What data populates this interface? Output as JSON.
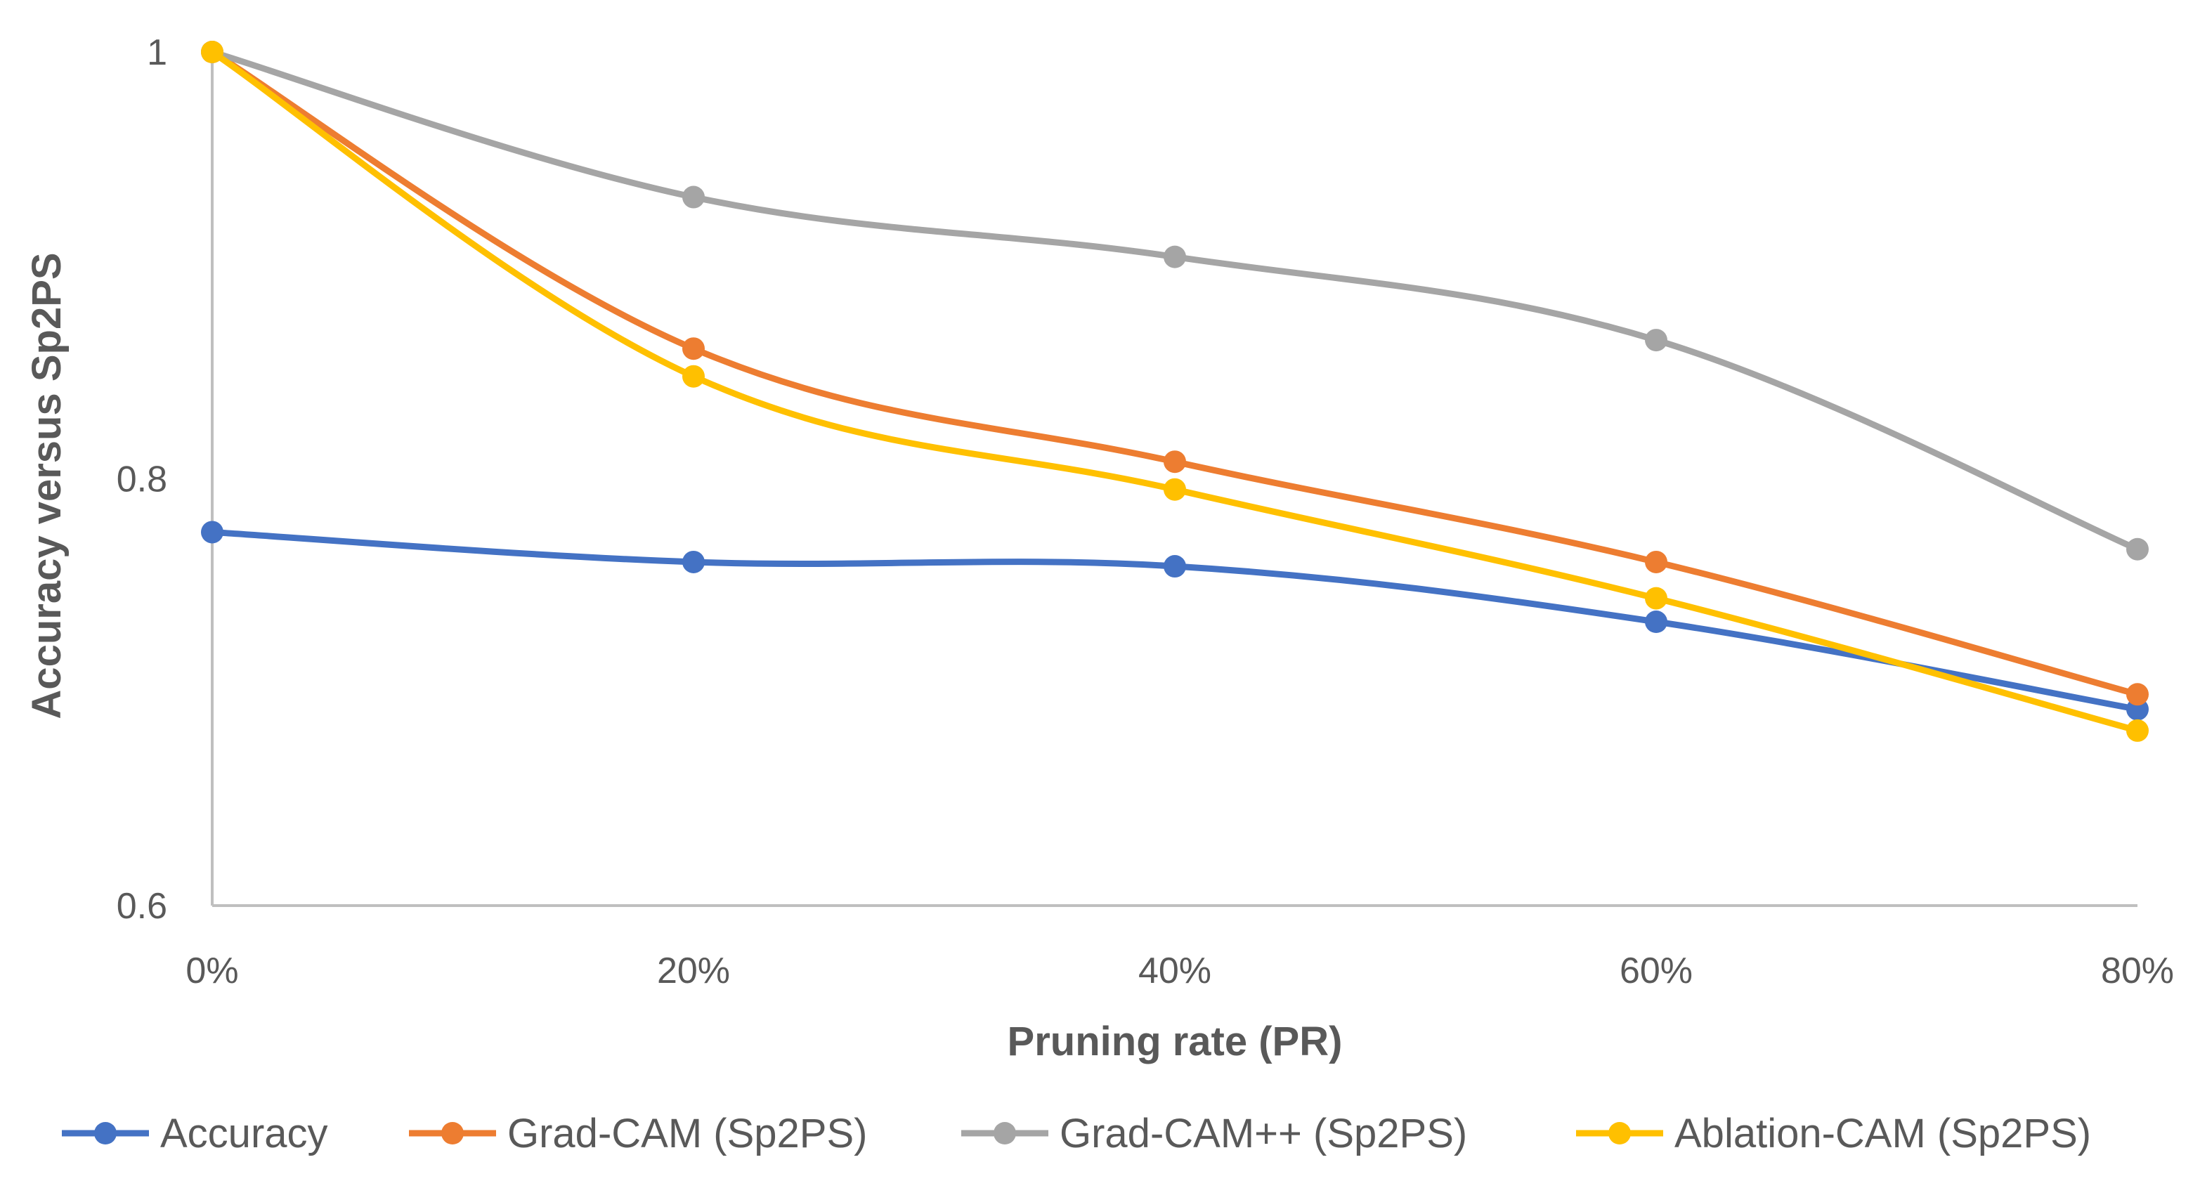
{
  "chart_data": {
    "type": "line",
    "title": "",
    "xlabel": "Pruning rate (PR)",
    "ylabel": "Accuracy versus  Sp2PS",
    "categories": [
      "0%",
      "20%",
      "40%",
      "60%",
      "80%"
    ],
    "y_ticks": [
      0.6,
      0.8,
      1
    ],
    "y_tick_labels": [
      "0.6",
      "0.8",
      "1"
    ],
    "ylim": [
      0.6,
      1.0
    ],
    "grid": false,
    "smooth": true,
    "legend_position": "bottom",
    "series": [
      {
        "name": "Accuracy",
        "color": "#4472C4",
        "values": [
          0.775,
          0.761,
          0.759,
          0.733,
          0.692
        ]
      },
      {
        "name": "Grad-CAM (Sp2PS)",
        "color": "#ED7D31",
        "values": [
          1.0,
          0.861,
          0.808,
          0.761,
          0.699
        ]
      },
      {
        "name": "Grad-CAM++  (Sp2PS)",
        "color": "#A5A5A5",
        "values": [
          1.0,
          0.932,
          0.904,
          0.865,
          0.767
        ]
      },
      {
        "name": "Ablation-CAM  (Sp2PS)",
        "color": "#FFC000",
        "values": [
          1.0,
          0.848,
          0.795,
          0.744,
          0.682
        ]
      }
    ]
  }
}
